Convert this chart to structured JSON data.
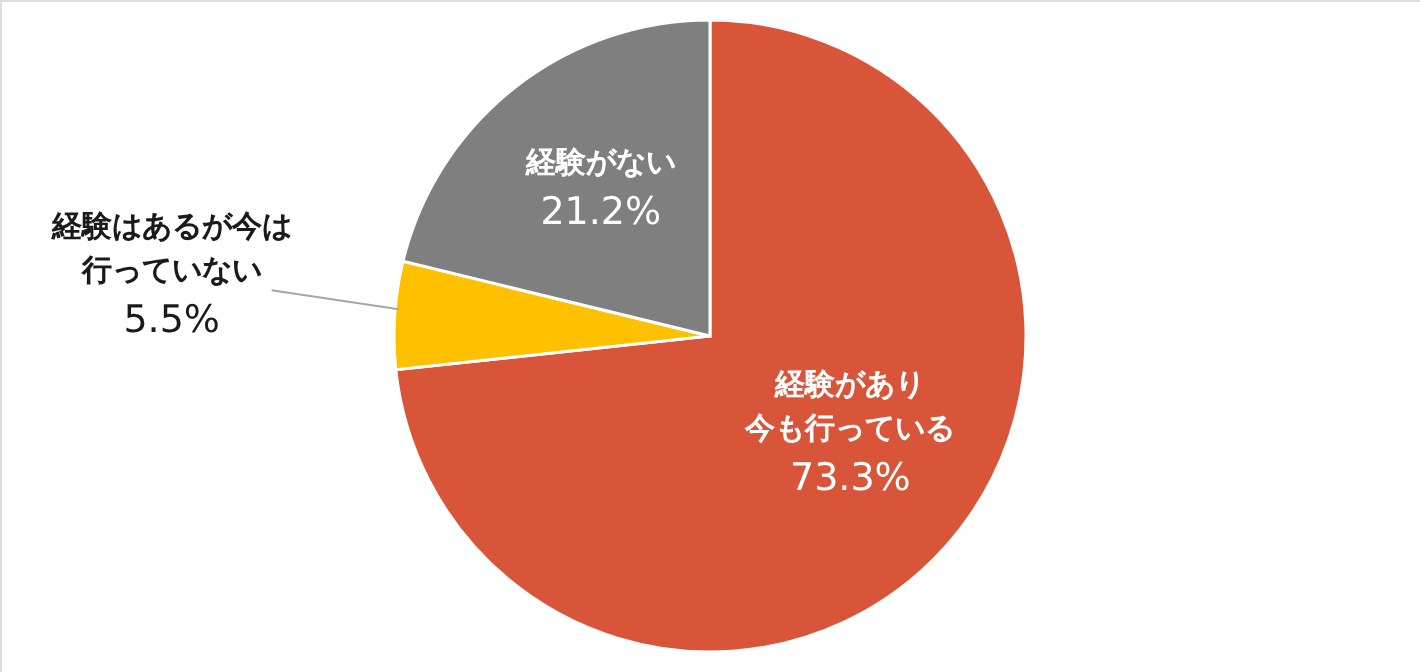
{
  "chart_data": {
    "type": "pie",
    "categories": [
      "経験があり今も行っている",
      "経験はあるが今は行っていない",
      "経験がない"
    ],
    "values": [
      73.3,
      5.5,
      21.2
    ],
    "colors": [
      "#d9553a",
      "#ffc000",
      "#7f7f7f"
    ],
    "value_labels": [
      "73.3%",
      "5.5%",
      "21.2%"
    ]
  }
}
